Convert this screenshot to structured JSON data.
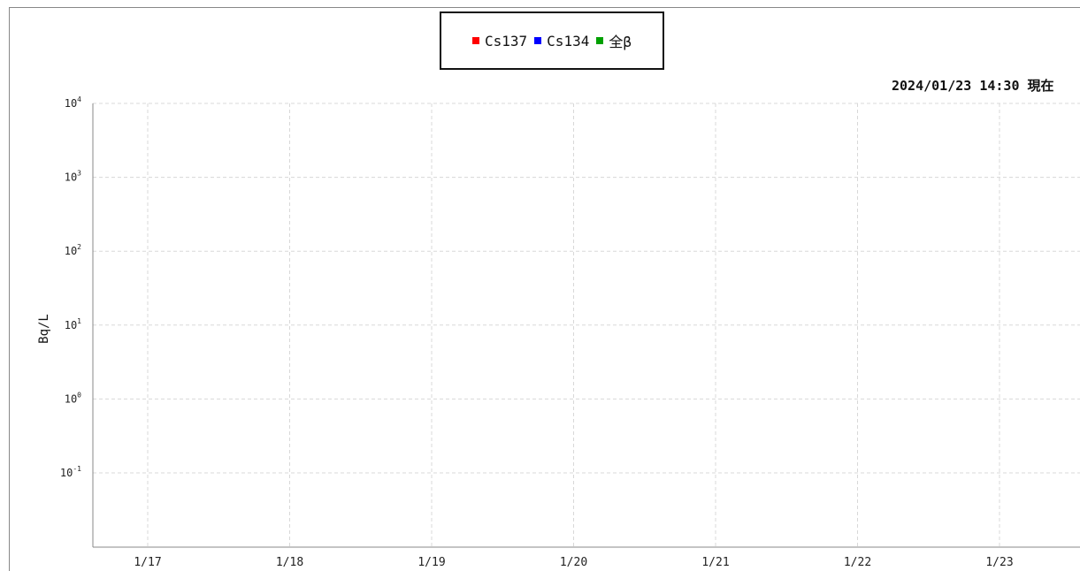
{
  "chart_data": {
    "type": "line",
    "legend": [
      {
        "name": "Cs137",
        "color": "#ff0000"
      },
      {
        "name": "Cs134",
        "color": "#0000ff"
      },
      {
        "name": "全β",
        "color": "#00a000"
      }
    ],
    "legend_position": "top-center",
    "timestamp": "2024/01/23 14:30 現在",
    "ylabel": "Bq/L",
    "yscale": "log",
    "y_ticks": [
      {
        "base": "10",
        "exp": "4"
      },
      {
        "base": "10",
        "exp": "3"
      },
      {
        "base": "10",
        "exp": "2"
      },
      {
        "base": "10",
        "exp": "1"
      },
      {
        "base": "10",
        "exp": "0"
      },
      {
        "base": "10",
        "exp": "-1"
      }
    ],
    "x_ticks": [
      "1/17",
      "1/18",
      "1/19",
      "1/20",
      "1/21",
      "1/22",
      "1/23"
    ],
    "ylim": [
      0.01,
      10000
    ],
    "grid": true,
    "series": []
  }
}
